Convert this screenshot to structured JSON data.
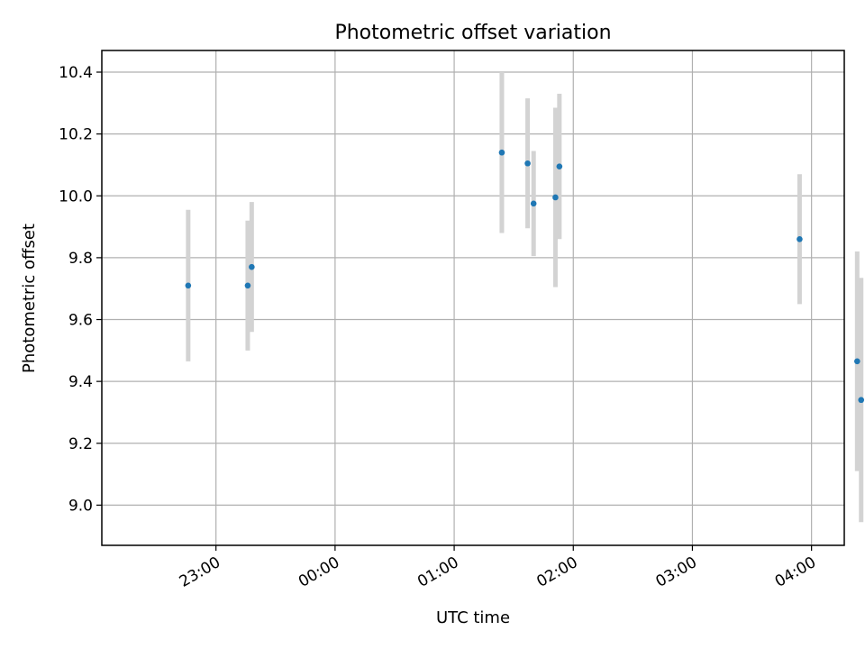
{
  "chart_data": {
    "type": "scatter",
    "title": "Photometric offset variation",
    "xlabel": "UTC time",
    "ylabel": "Photometric offset",
    "x_unit": "minutes",
    "xlim": [
      -67.5,
      306.5
    ],
    "ylim": [
      8.87,
      10.47
    ],
    "x_ticks": [
      {
        "value": -10,
        "label": "23:00"
      },
      {
        "value": 50,
        "label": "00:00"
      },
      {
        "value": 110,
        "label": "01:00"
      },
      {
        "value": 170,
        "label": "02:00"
      },
      {
        "value": 230,
        "label": "03:00"
      },
      {
        "value": 290,
        "label": "04:00"
      }
    ],
    "y_ticks": [
      {
        "value": 9.0,
        "label": "9.0"
      },
      {
        "value": 9.2,
        "label": "9.2"
      },
      {
        "value": 9.4,
        "label": "9.4"
      },
      {
        "value": 9.6,
        "label": "9.6"
      },
      {
        "value": 9.8,
        "label": "9.8"
      },
      {
        "value": 10.0,
        "label": "10.0"
      },
      {
        "value": 10.2,
        "label": "10.2"
      },
      {
        "value": 10.4,
        "label": "10.4"
      }
    ],
    "grid": true,
    "colors": {
      "point": "#1f77b4",
      "errorbar": "#d3d3d3"
    },
    "series": [
      {
        "points": [
          {
            "x": -24,
            "y": 9.71,
            "err": 0.245
          },
          {
            "x": 6,
            "y": 9.71,
            "err": 0.21
          },
          {
            "x": 8,
            "y": 9.77,
            "err": 0.21
          },
          {
            "x": 134,
            "y": 10.14,
            "err": 0.26
          },
          {
            "x": 147,
            "y": 10.105,
            "err": 0.21
          },
          {
            "x": 150,
            "y": 9.975,
            "err": 0.17
          },
          {
            "x": 161,
            "y": 9.995,
            "err": 0.29
          },
          {
            "x": 163,
            "y": 10.095,
            "err": 0.235
          },
          {
            "x": 284,
            "y": 9.86,
            "err": 0.21
          },
          {
            "x": 313,
            "y": 9.465,
            "err": 0.355
          },
          {
            "x": 315,
            "y": 9.34,
            "err": 0.395
          }
        ]
      }
    ]
  }
}
